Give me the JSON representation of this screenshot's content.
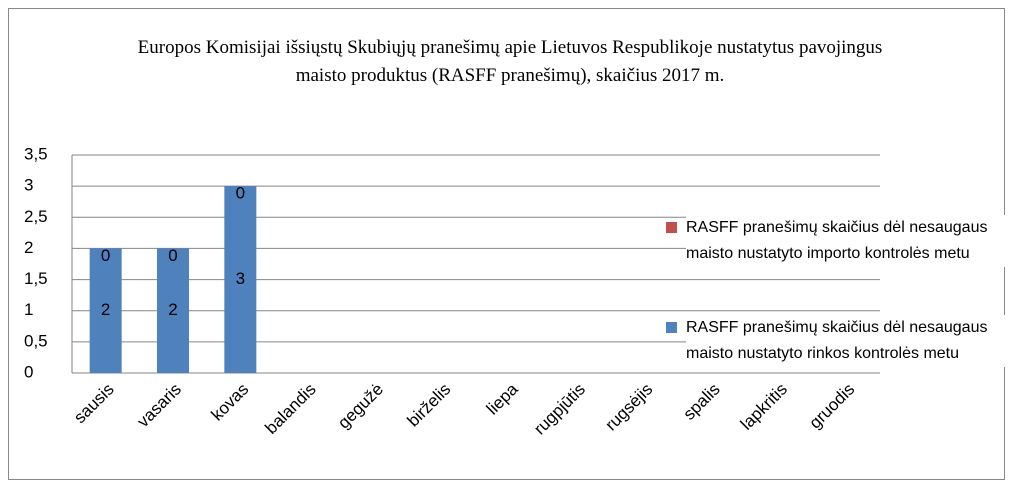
{
  "chart_data": {
    "type": "stacked_bar",
    "title": "Europos Komisijai  išsiųstų Skubiųjų pranešimų apie Lietuvos Respublikoje nustatytus pavojingus maisto produktus (RASFF pranešimų), skaičius 2017  m.",
    "categories": [
      "sausis",
      "vasaris",
      "kovas",
      "balandis",
      "gegužė",
      "birželis",
      "liepa",
      "rugpjūtis",
      "rugsėjis",
      "spalis",
      "lapkritis",
      "gruodis"
    ],
    "series": [
      {
        "name": "RASFF pranešimų skaičius dėl nesaugaus maisto nustatyto rinkos kontrolės metu",
        "color": "#4f81bd",
        "values": [
          2,
          2,
          3,
          null,
          null,
          null,
          null,
          null,
          null,
          null,
          null,
          null
        ]
      },
      {
        "name": "RASFF pranešimų skaičius dėl nesaugaus maisto nustatyto importo kontrolės metu",
        "color": "#c0504d",
        "values": [
          0,
          0,
          0,
          null,
          null,
          null,
          null,
          null,
          null,
          null,
          null,
          null
        ]
      }
    ],
    "ylim": [
      0,
      3.5
    ],
    "yticks": [
      0,
      {
        "value": 0.5,
        "label": "0,5"
      },
      1,
      {
        "value": 1.5,
        "label": "1,5"
      },
      2,
      {
        "value": 2.5,
        "label": "2,5"
      },
      3,
      {
        "value": 3.5,
        "label": "3,5"
      }
    ],
    "grid": true,
    "legend": "right"
  }
}
